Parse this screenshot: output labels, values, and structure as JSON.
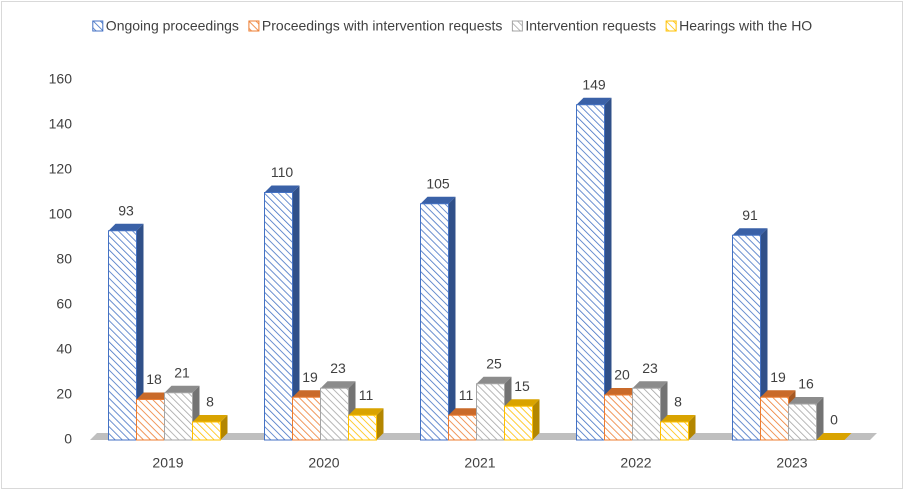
{
  "chart_data": {
    "type": "bar3d",
    "categories": [
      "2019",
      "2020",
      "2021",
      "2022",
      "2023"
    ],
    "series": [
      {
        "name": "Ongoing proceedings",
        "color": "#4472c4",
        "values": [
          93,
          110,
          105,
          149,
          91
        ]
      },
      {
        "name": "Proceedings with intervention requests",
        "color": "#ed7d31",
        "values": [
          18,
          19,
          11,
          20,
          19
        ]
      },
      {
        "name": "Intervention requests",
        "color": "#a5a5a5",
        "values": [
          21,
          23,
          25,
          23,
          16
        ]
      },
      {
        "name": "Hearings with the HO",
        "color": "#ffc000",
        "values": [
          8,
          11,
          15,
          8,
          0
        ]
      }
    ],
    "ylim": [
      0,
      160
    ],
    "yticks": [
      0,
      20,
      40,
      60,
      80,
      100,
      120,
      140,
      160
    ],
    "grid": false,
    "legend": "top",
    "data_labels": true
  }
}
